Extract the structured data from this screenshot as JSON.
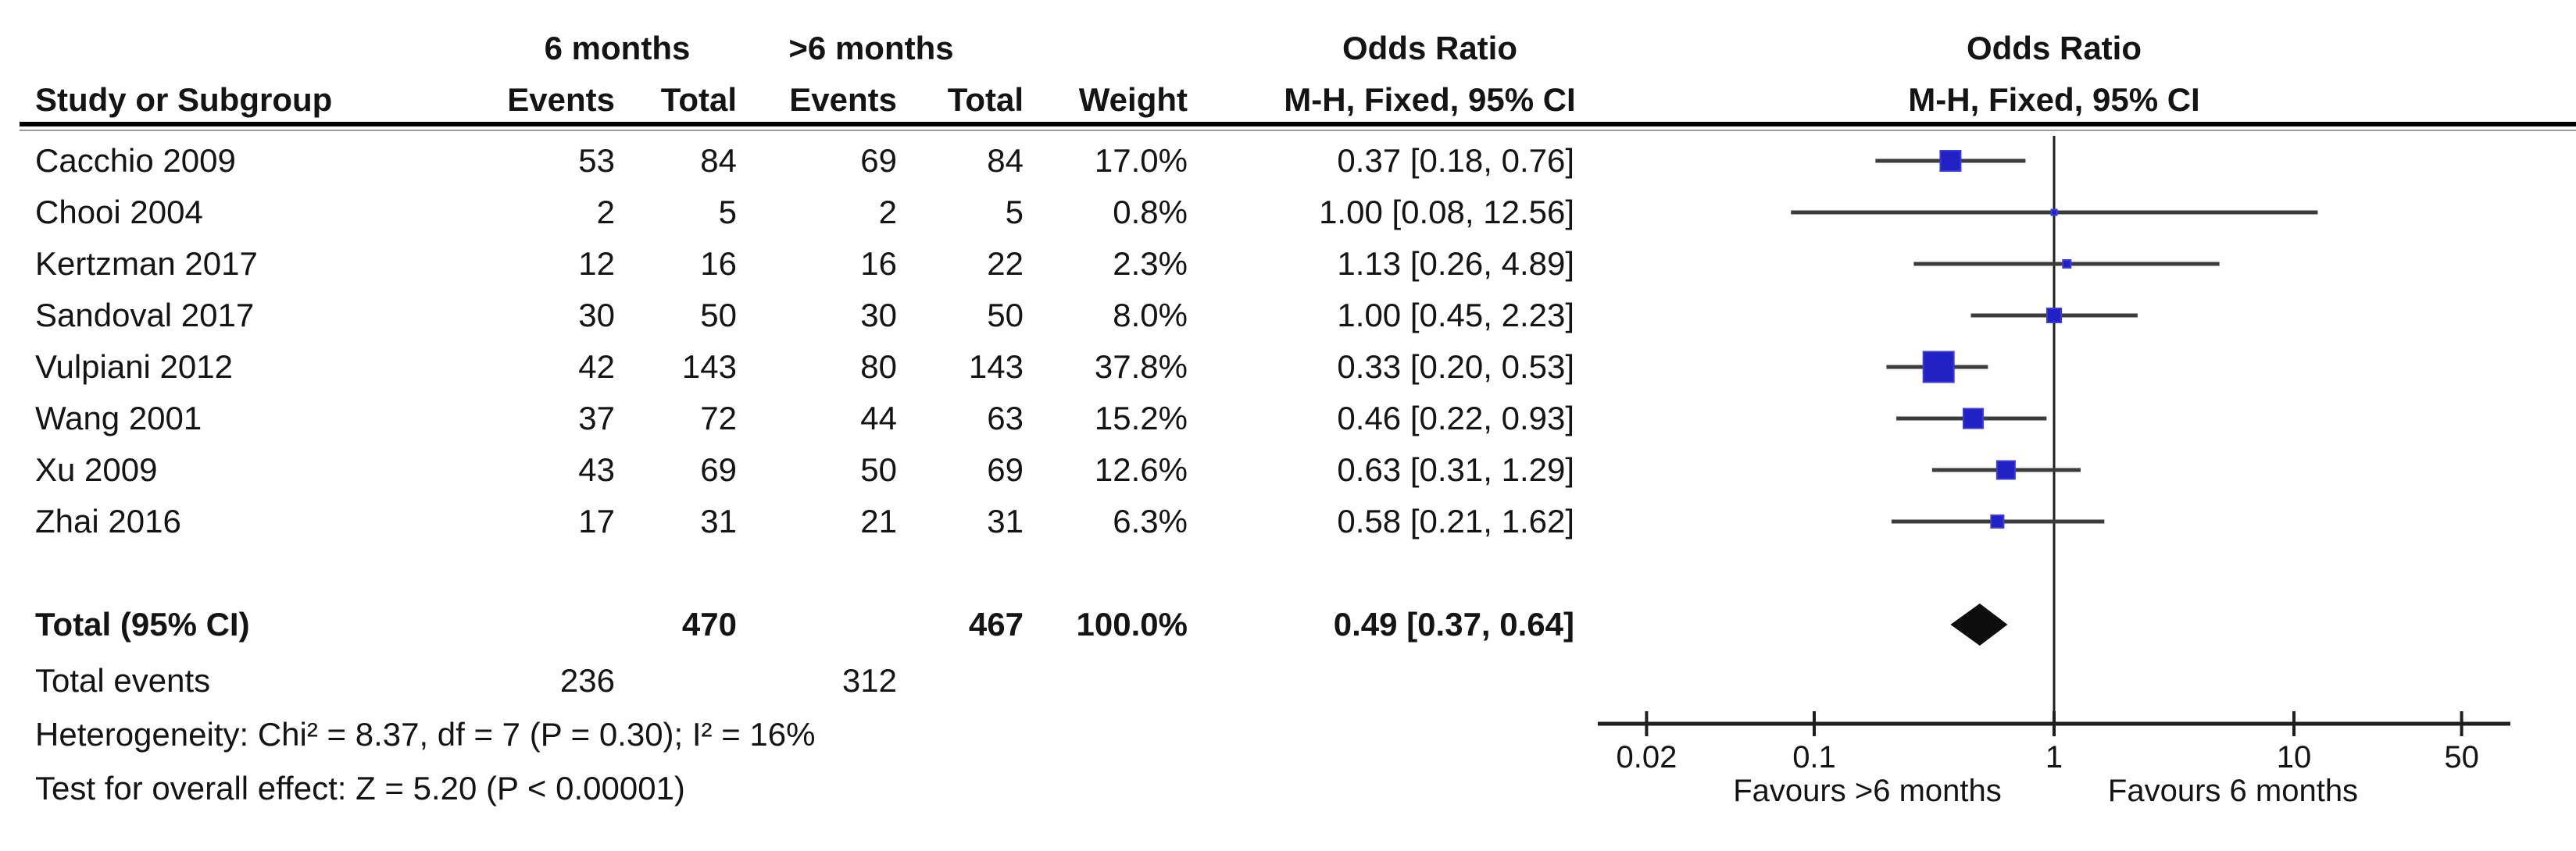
{
  "figure": {
    "group1_header": "6 months",
    "group2_header": ">6 months",
    "col_study": "Study or Subgroup",
    "col_events": "Events",
    "col_total": "Total",
    "col_weight": "Weight",
    "or_header_line1": "Odds Ratio",
    "or_header_line2": "M-H, Fixed, 95% CI",
    "plot_header_line1": "Odds Ratio",
    "plot_header_line2": "M-H, Fixed, 95% CI"
  },
  "totals": {
    "label": "Total (95% CI)",
    "total1": "470",
    "total2": "467",
    "weight": "100.0%",
    "or_text": "0.49 [0.37, 0.64]",
    "events_label": "Total events",
    "events1": "236",
    "events2": "312",
    "heterogeneity": "Heterogeneity: Chi² = 8.37, df = 7 (P = 0.30); I² = 16%",
    "overall_effect": "Test for overall effect: Z = 5.20 (P < 0.00001)"
  },
  "chart_data": {
    "type": "forest",
    "effect_measure": "Odds Ratio, M-H, Fixed, 95% CI",
    "x_scale": "log",
    "x_ticks": [
      0.02,
      0.1,
      1,
      10,
      50
    ],
    "x_tick_labels": [
      "0.02",
      "0.1",
      "1",
      "10",
      "50"
    ],
    "favours_left": "Favours >6 months",
    "favours_right": "Favours 6 months",
    "studies": [
      {
        "name": "Cacchio 2009",
        "events1": 53,
        "total1": 84,
        "events2": 69,
        "total2": 84,
        "weight_pct": 17.0,
        "or": 0.37,
        "ci_low": 0.18,
        "ci_high": 0.76,
        "weight_text": "17.0%",
        "or_text": "0.37 [0.18, 0.76]"
      },
      {
        "name": "Chooi 2004",
        "events1": 2,
        "total1": 5,
        "events2": 2,
        "total2": 5,
        "weight_pct": 0.8,
        "or": 1.0,
        "ci_low": 0.08,
        "ci_high": 12.56,
        "weight_text": "0.8%",
        "or_text": "1.00 [0.08, 12.56]"
      },
      {
        "name": "Kertzman 2017",
        "events1": 12,
        "total1": 16,
        "events2": 16,
        "total2": 22,
        "weight_pct": 2.3,
        "or": 1.13,
        "ci_low": 0.26,
        "ci_high": 4.89,
        "weight_text": "2.3%",
        "or_text": "1.13 [0.26, 4.89]"
      },
      {
        "name": "Sandoval 2017",
        "events1": 30,
        "total1": 50,
        "events2": 30,
        "total2": 50,
        "weight_pct": 8.0,
        "or": 1.0,
        "ci_low": 0.45,
        "ci_high": 2.23,
        "weight_text": "8.0%",
        "or_text": "1.00 [0.45, 2.23]"
      },
      {
        "name": "Vulpiani 2012",
        "events1": 42,
        "total1": 143,
        "events2": 80,
        "total2": 143,
        "weight_pct": 37.8,
        "or": 0.33,
        "ci_low": 0.2,
        "ci_high": 0.53,
        "weight_text": "37.8%",
        "or_text": "0.33 [0.20, 0.53]"
      },
      {
        "name": "Wang 2001",
        "events1": 37,
        "total1": 72,
        "events2": 44,
        "total2": 63,
        "weight_pct": 15.2,
        "or": 0.46,
        "ci_low": 0.22,
        "ci_high": 0.93,
        "weight_text": "15.2%",
        "or_text": "0.46 [0.22, 0.93]"
      },
      {
        "name": "Xu 2009",
        "events1": 43,
        "total1": 69,
        "events2": 50,
        "total2": 69,
        "weight_pct": 12.6,
        "or": 0.63,
        "ci_low": 0.31,
        "ci_high": 1.29,
        "weight_text": "12.6%",
        "or_text": "0.63 [0.31, 1.29]"
      },
      {
        "name": "Zhai 2016",
        "events1": 17,
        "total1": 31,
        "events2": 21,
        "total2": 31,
        "weight_pct": 6.3,
        "or": 0.58,
        "ci_low": 0.21,
        "ci_high": 1.62,
        "weight_text": "6.3%",
        "or_text": "0.58 [0.21, 1.62]"
      }
    ],
    "total_effect": {
      "or": 0.49,
      "ci_low": 0.37,
      "ci_high": 0.64,
      "weight_pct": 100.0
    }
  },
  "colors": {
    "marker_fill": "#2121c4",
    "marker_stroke": "#3b3bdd",
    "ci_line": "#3c3c3c",
    "axis": "#1e1e1e",
    "diamond": "#0d0d0d",
    "text": "#141414"
  }
}
